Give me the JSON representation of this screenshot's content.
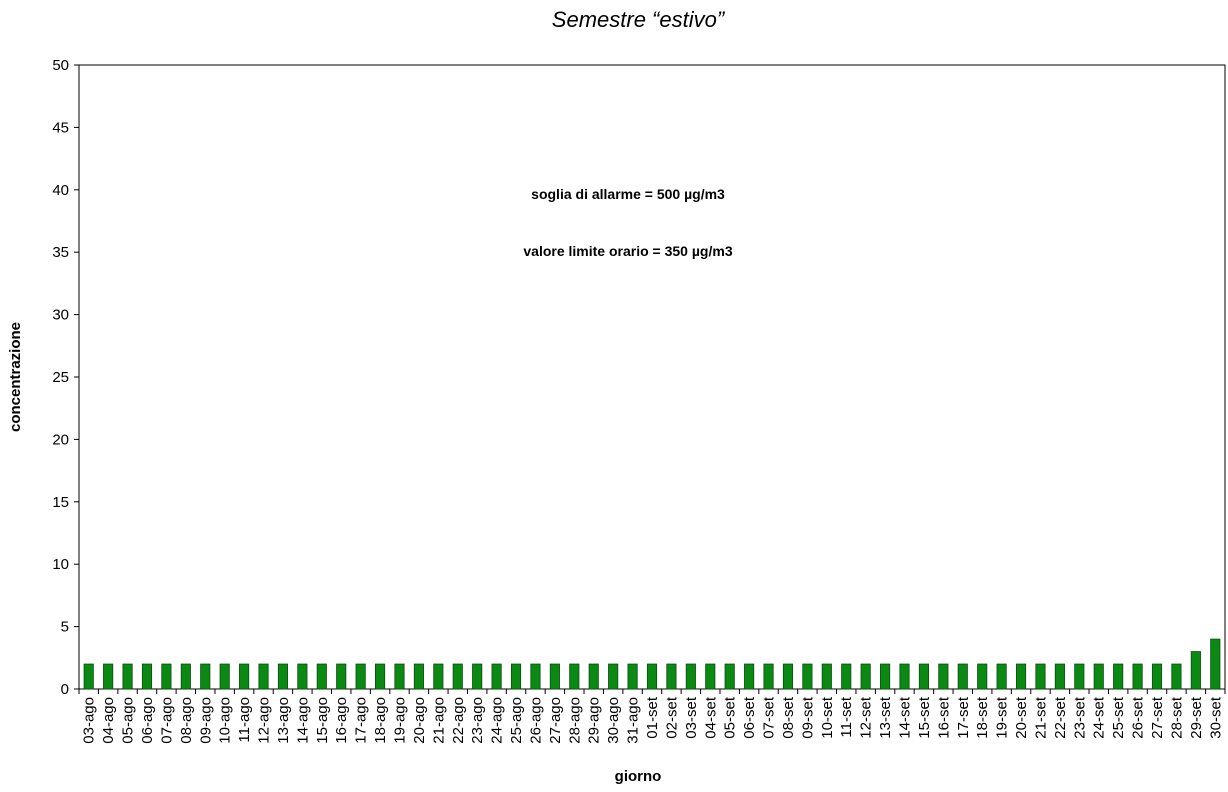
{
  "chart_data": {
    "type": "bar",
    "title": "Semestre “estivo”",
    "xlabel": "giorno",
    "ylabel": "concentrazione",
    "ylim": [
      0,
      50
    ],
    "yticks": [
      "0",
      "5",
      "10",
      "15",
      "20",
      "25",
      "30",
      "35",
      "40",
      "45",
      "50"
    ],
    "grid": false,
    "annotations": [
      "soglia di allarme = 500 µg/m3",
      "valore limite orario = 350 µg/m3"
    ],
    "bar_color": "#0a8a12",
    "categories": [
      "03-ago",
      "04-ago",
      "05-ago",
      "06-ago",
      "07-ago",
      "08-ago",
      "09-ago",
      "10-ago",
      "11-ago",
      "12-ago",
      "13-ago",
      "14-ago",
      "15-ago",
      "16-ago",
      "17-ago",
      "18-ago",
      "19-ago",
      "20-ago",
      "21-ago",
      "22-ago",
      "23-ago",
      "24-ago",
      "25-ago",
      "26-ago",
      "27-ago",
      "28-ago",
      "29-ago",
      "30-ago",
      "31-ago",
      "01-set",
      "02-set",
      "03-set",
      "04-set",
      "05-set",
      "06-set",
      "07-set",
      "08-set",
      "09-set",
      "10-set",
      "11-set",
      "12-set",
      "13-set",
      "14-set",
      "15-set",
      "16-set",
      "17-set",
      "18-set",
      "19-set",
      "20-set",
      "21-set",
      "22-set",
      "23-set",
      "24-set",
      "25-set",
      "26-set",
      "27-set",
      "28-set",
      "29-set",
      "30-set"
    ],
    "values": [
      2,
      2,
      2,
      2,
      2,
      2,
      2,
      2,
      2,
      2,
      2,
      2,
      2,
      2,
      2,
      2,
      2,
      2,
      2,
      2,
      2,
      2,
      2,
      2,
      2,
      2,
      2,
      2,
      2,
      2,
      2,
      2,
      2,
      2,
      2,
      2,
      2,
      2,
      2,
      2,
      2,
      2,
      2,
      2,
      2,
      2,
      2,
      2,
      2,
      2,
      2,
      2,
      2,
      2,
      2,
      2,
      2,
      3,
      4
    ]
  }
}
